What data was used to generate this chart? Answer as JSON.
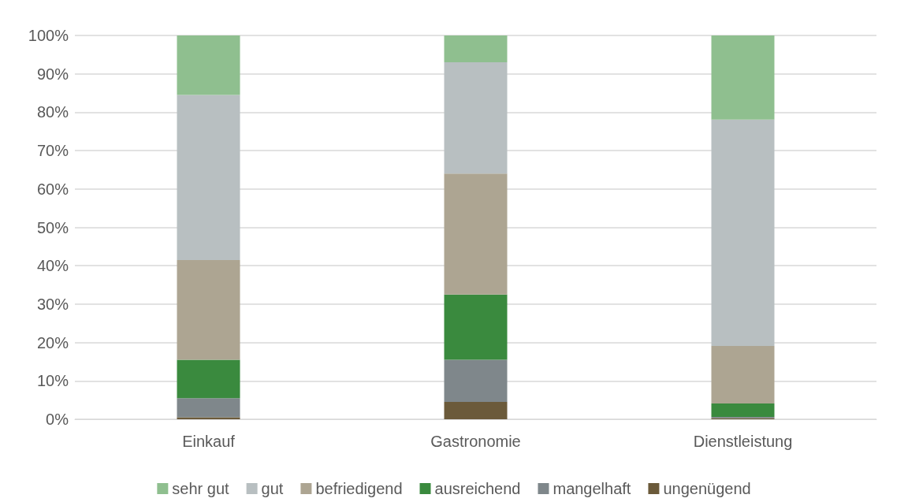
{
  "chart_data": {
    "type": "bar",
    "stacked": true,
    "categories": [
      "Einkauf",
      "Gastronomie",
      "Dienstleistung"
    ],
    "series": [
      {
        "name": "ungenügend",
        "color": "#6b5a3a",
        "values": [
          0.5,
          4.5,
          0.3
        ]
      },
      {
        "name": "mangelhaft",
        "color": "#7f878b",
        "values": [
          5,
          11,
          0.3
        ]
      },
      {
        "name": "ausreichend",
        "color": "#3a8a3e",
        "values": [
          10,
          17,
          3.5
        ]
      },
      {
        "name": "befriedigend",
        "color": "#ada592",
        "values": [
          26,
          31.5,
          15
        ]
      },
      {
        "name": "gut",
        "color": "#b8bfc1",
        "values": [
          43,
          29,
          59
        ]
      },
      {
        "name": "sehr gut",
        "color": "#8fbf8f",
        "values": [
          15.5,
          7,
          21.9
        ]
      }
    ],
    "ylim": [
      0,
      100
    ],
    "yticks": [
      {
        "value": 0,
        "label": "0%"
      },
      {
        "value": 10,
        "label": "10%"
      },
      {
        "value": 20,
        "label": "20%"
      },
      {
        "value": 30,
        "label": "30%"
      },
      {
        "value": 40,
        "label": "40%"
      },
      {
        "value": 50,
        "label": "50%"
      },
      {
        "value": 60,
        "label": "60%"
      },
      {
        "value": 70,
        "label": "70%"
      },
      {
        "value": 80,
        "label": "80%"
      },
      {
        "value": 90,
        "label": "90%"
      },
      {
        "value": 100,
        "label": "100%"
      }
    ],
    "grid": true,
    "legend": "bottom"
  }
}
